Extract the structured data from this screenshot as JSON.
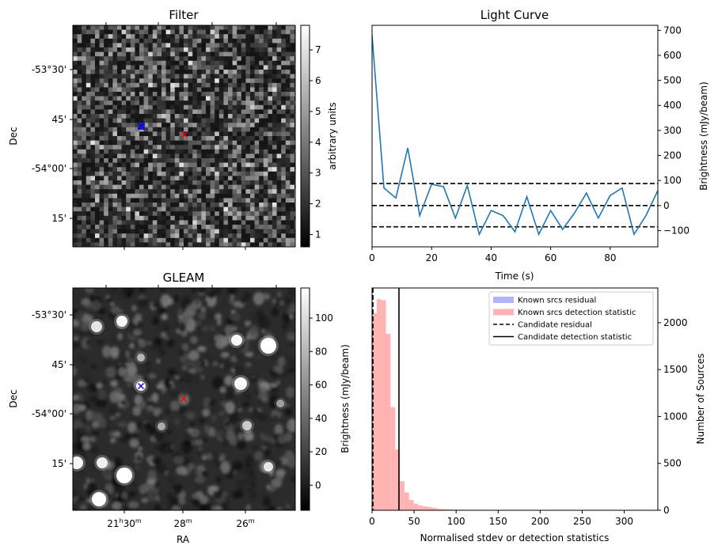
{
  "figure": {
    "panels": [
      {
        "id": "filter",
        "title": "Filter",
        "ylabel": "Dec",
        "yticks": [
          "-53°30'",
          "45'",
          "-54°00'",
          "15'"
        ],
        "colorbar": {
          "label": "arbitrary units",
          "ticks": [
            "1",
            "2",
            "3",
            "4",
            "5",
            "6",
            "7"
          ],
          "min": 0.6,
          "max": 7.8
        },
        "markers": [
          {
            "shape": "x",
            "color": "#0000ff",
            "note": "source"
          },
          {
            "shape": "x",
            "color": "#ff0000",
            "note": "candidate"
          }
        ]
      },
      {
        "id": "gleam",
        "title": "GLEAM",
        "ylabel": "Dec",
        "xlabel": "RA",
        "yticks": [
          "-53°30'",
          "45'",
          "-54°00'",
          "15'"
        ],
        "xticks": [
          {
            "base": "21",
            "h": "h",
            "mid": "30",
            "m": "m"
          },
          {
            "base": "28",
            "h": "",
            "mid": "",
            "m": "m"
          },
          {
            "base": "26",
            "h": "",
            "mid": "",
            "m": "m"
          }
        ],
        "colorbar": {
          "label": "Brightness (mJy/beam)",
          "ticks": [
            "0",
            "20",
            "40",
            "60",
            "80",
            "100"
          ],
          "min": -15,
          "max": 118
        }
      }
    ]
  },
  "chart_data": [
    {
      "type": "line",
      "title": "Light Curve",
      "xlabel": "Time (s)",
      "ylabel": "Brightness (mJy/beam)",
      "xlim": [
        0,
        96
      ],
      "ylim": [
        -165,
        720
      ],
      "xticks": [
        0,
        20,
        40,
        60,
        80
      ],
      "yticks": [
        -100,
        0,
        100,
        200,
        300,
        400,
        500,
        600,
        700
      ],
      "line_color": "#1f77b4",
      "x": [
        0,
        4,
        8,
        12,
        16,
        20,
        24,
        28,
        32,
        36,
        40,
        44,
        48,
        52,
        56,
        60,
        64,
        68,
        72,
        76,
        80,
        84,
        88,
        92,
        96
      ],
      "y": [
        680,
        70,
        30,
        230,
        -40,
        85,
        75,
        -50,
        80,
        -115,
        -20,
        -40,
        -105,
        35,
        -115,
        -20,
        -95,
        -30,
        50,
        -50,
        40,
        70,
        -115,
        -40,
        60
      ],
      "hlines": [
        {
          "y": 88,
          "style": "dashed"
        },
        {
          "y": 0,
          "style": "dashed"
        },
        {
          "y": -85,
          "style": "dashed"
        }
      ]
    },
    {
      "type": "histogram",
      "xlabel": "Normalised stdev or detection statistics",
      "ylabel": "Number of Sources",
      "xlim": [
        0,
        340
      ],
      "ylim": [
        0,
        2370
      ],
      "xticks": [
        0,
        50,
        100,
        150,
        200,
        250,
        300
      ],
      "yticks": [
        0,
        500,
        1000,
        1500,
        2000
      ],
      "legend_position": "top-right",
      "legend": [
        {
          "label": "Known srcs residual",
          "kind": "patch",
          "color": "#b3b3ff"
        },
        {
          "label": "Known srcs detection statistic",
          "kind": "patch",
          "color": "#ffb3b3"
        },
        {
          "label": "Candidate residual",
          "kind": "dashed-line",
          "color": "#000000"
        },
        {
          "label": "Candidate detection statistic",
          "kind": "solid-line",
          "color": "#000000"
        }
      ],
      "series": [
        {
          "name": "Known srcs detection statistic",
          "color": "#ffb3b3",
          "bin_width": 5.5,
          "bin_start": 0,
          "counts": [
            2100,
            2250,
            2240,
            1880,
            1100,
            650,
            310,
            190,
            110,
            70,
            50,
            42,
            35,
            25,
            15,
            12,
            10,
            8,
            7,
            6,
            5,
            5,
            4,
            4,
            3,
            3,
            3,
            2,
            2,
            2,
            2,
            1,
            1,
            1,
            1,
            1,
            1,
            1,
            1,
            1,
            1,
            1,
            1,
            1,
            1,
            1,
            1,
            1,
            1,
            1,
            1,
            1,
            1,
            1,
            1,
            1,
            1,
            1,
            1,
            1
          ]
        },
        {
          "name": "Known srcs residual",
          "color": "#b3b3ff",
          "counts": []
        }
      ],
      "vlines": [
        {
          "name": "Candidate residual",
          "x": 1,
          "style": "dashed"
        },
        {
          "name": "Candidate detection statistic",
          "x": 32,
          "style": "solid"
        }
      ]
    }
  ]
}
